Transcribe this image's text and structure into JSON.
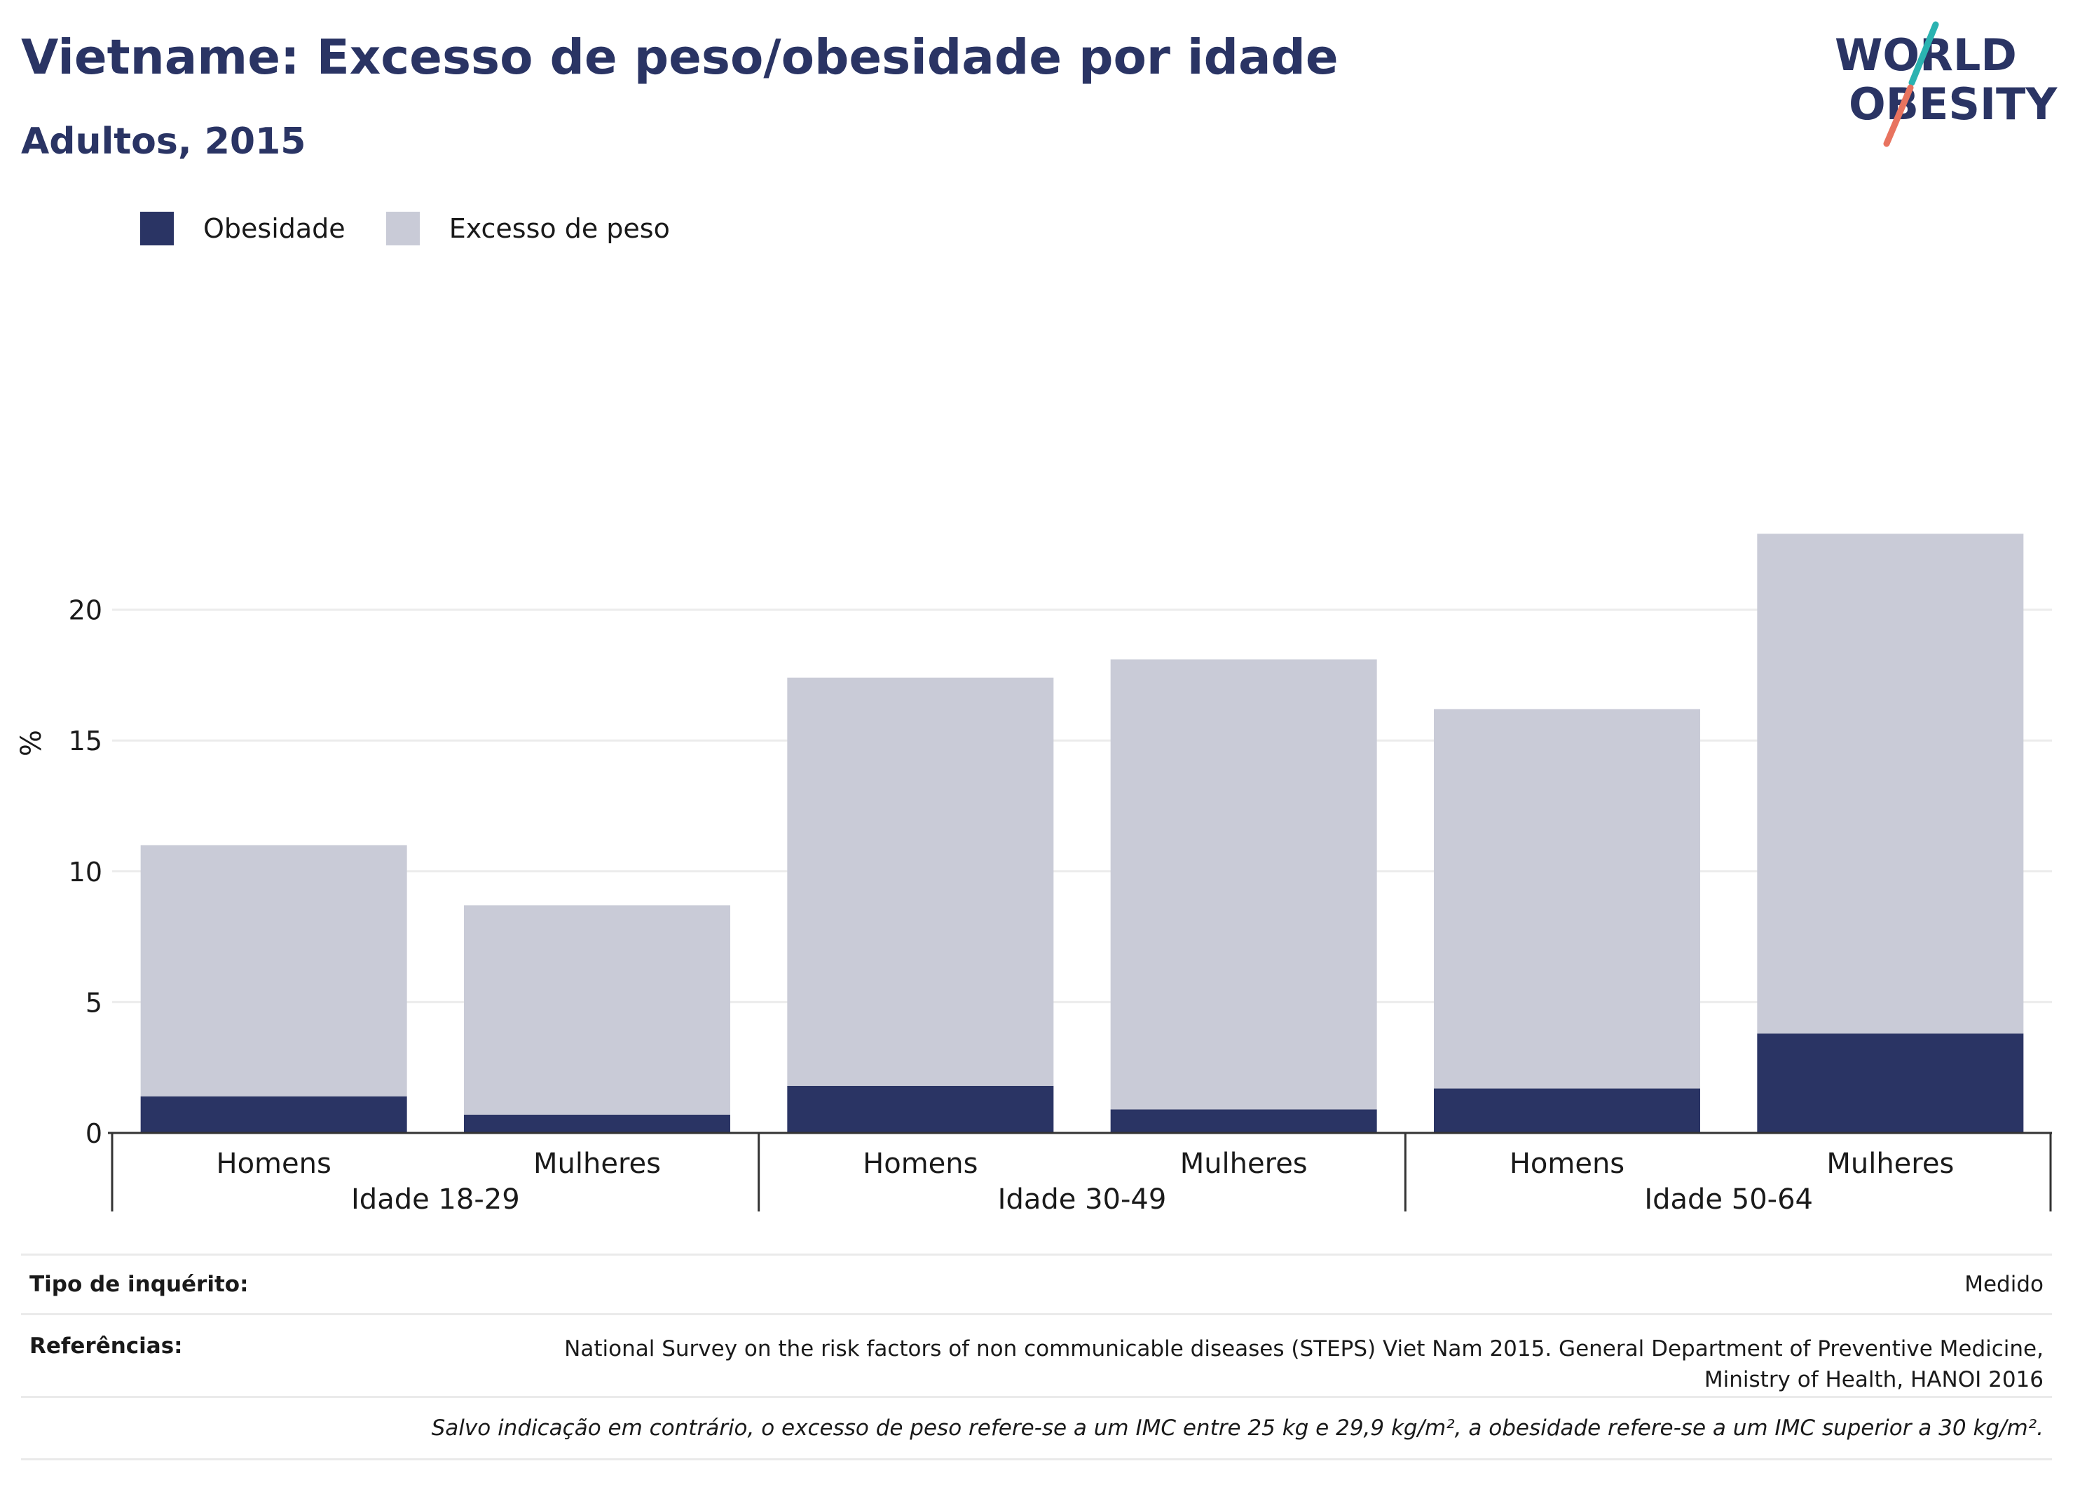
{
  "header": {
    "title": "Vietname: Excesso de peso/obesidade por idade",
    "subtitle": "Adultos, 2015"
  },
  "logo": {
    "line1": "WORLD",
    "line2": "OBESITY",
    "colors": {
      "text": "#2a3464",
      "accent_teal": "#2bb3b1",
      "accent_coral": "#e8735f"
    }
  },
  "legend": [
    {
      "label": "Obesidade",
      "color": "#2a3464"
    },
    {
      "label": "Excesso de peso",
      "color": "#c9cbd7"
    }
  ],
  "chart_data": {
    "type": "bar",
    "stacked": true,
    "ylabel": "%",
    "ylim": [
      0,
      25
    ],
    "yticks": [
      0,
      5,
      10,
      15,
      20
    ],
    "grid": true,
    "legend_position": "top-left",
    "groups": [
      {
        "label": "Idade 18-29",
        "categories": [
          "Homens",
          "Mulheres"
        ]
      },
      {
        "label": "Idade 30-49",
        "categories": [
          "Homens",
          "Mulheres"
        ]
      },
      {
        "label": "Idade 50-64",
        "categories": [
          "Homens",
          "Mulheres"
        ]
      }
    ],
    "series": [
      {
        "name": "Obesidade",
        "color": "#2a3464",
        "values": [
          1.4,
          0.7,
          1.8,
          0.9,
          1.7,
          3.8
        ]
      },
      {
        "name": "Excesso de peso",
        "color": "#c9cbd7",
        "values": [
          9.6,
          8.0,
          15.6,
          17.2,
          14.5,
          19.1
        ]
      }
    ]
  },
  "footer": {
    "survey_label": "Tipo de inquérito:",
    "survey_value": "Medido",
    "refs_label": "Referências:",
    "refs_line1": "National Survey on the risk factors of non communicable diseases (STEPS) Viet Nam 2015. General Department of Preventive Medicine,",
    "refs_line2": "Ministry of Health, HANOI 2016",
    "note": "Salvo indicação em contrário, o excesso de peso refere-se a um IMC entre 25 kg e 29,9 kg/m², a obesidade refere-se a um IMC superior a 30 kg/m²."
  }
}
